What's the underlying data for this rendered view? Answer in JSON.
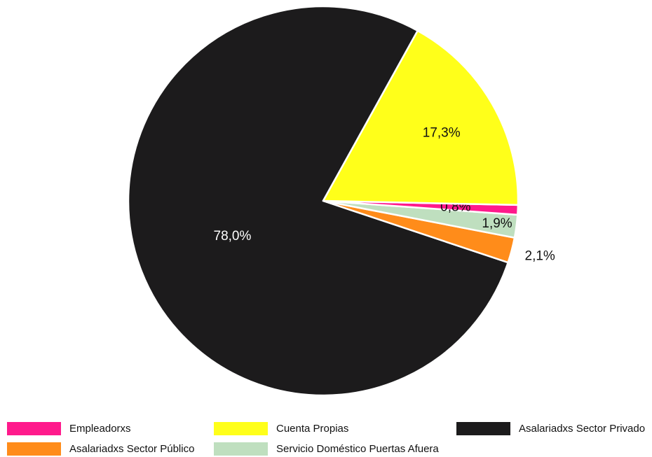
{
  "chart_data": {
    "type": "pie",
    "title": "",
    "slices": [
      {
        "label": "Asalariadxs Sector Privado",
        "value": 78.0,
        "value_label": "78,0%",
        "color": "#1c1b1c",
        "label_color": "#ffffff"
      },
      {
        "label": "Asalariadxs Sector Público",
        "value": 2.1,
        "value_label": "2,1%",
        "color": "#ff8c1a",
        "label_color": "#111111"
      },
      {
        "label": "Servicio Doméstico Puertas Afuera",
        "value": 1.9,
        "value_label": "1,9%",
        "color": "#bfdfbf",
        "label_color": "#111111"
      },
      {
        "label": "Empleadorxs",
        "value": 0.8,
        "value_label": "0,8%",
        "color": "#ff1a8c",
        "label_color": "#111111"
      },
      {
        "label": "Cuenta Propias",
        "value": 17.3,
        "value_label": "17,3%",
        "color": "#ffff1a",
        "label_color": "#111111"
      }
    ],
    "legend": {
      "placement": "bottom",
      "entries": [
        "Empleadorxs",
        "Asalariadxs Sector Público",
        "Cuenta Propias",
        "Servicio Doméstico Puertas Afuera",
        "Asalariadxs Sector Privado"
      ]
    }
  }
}
